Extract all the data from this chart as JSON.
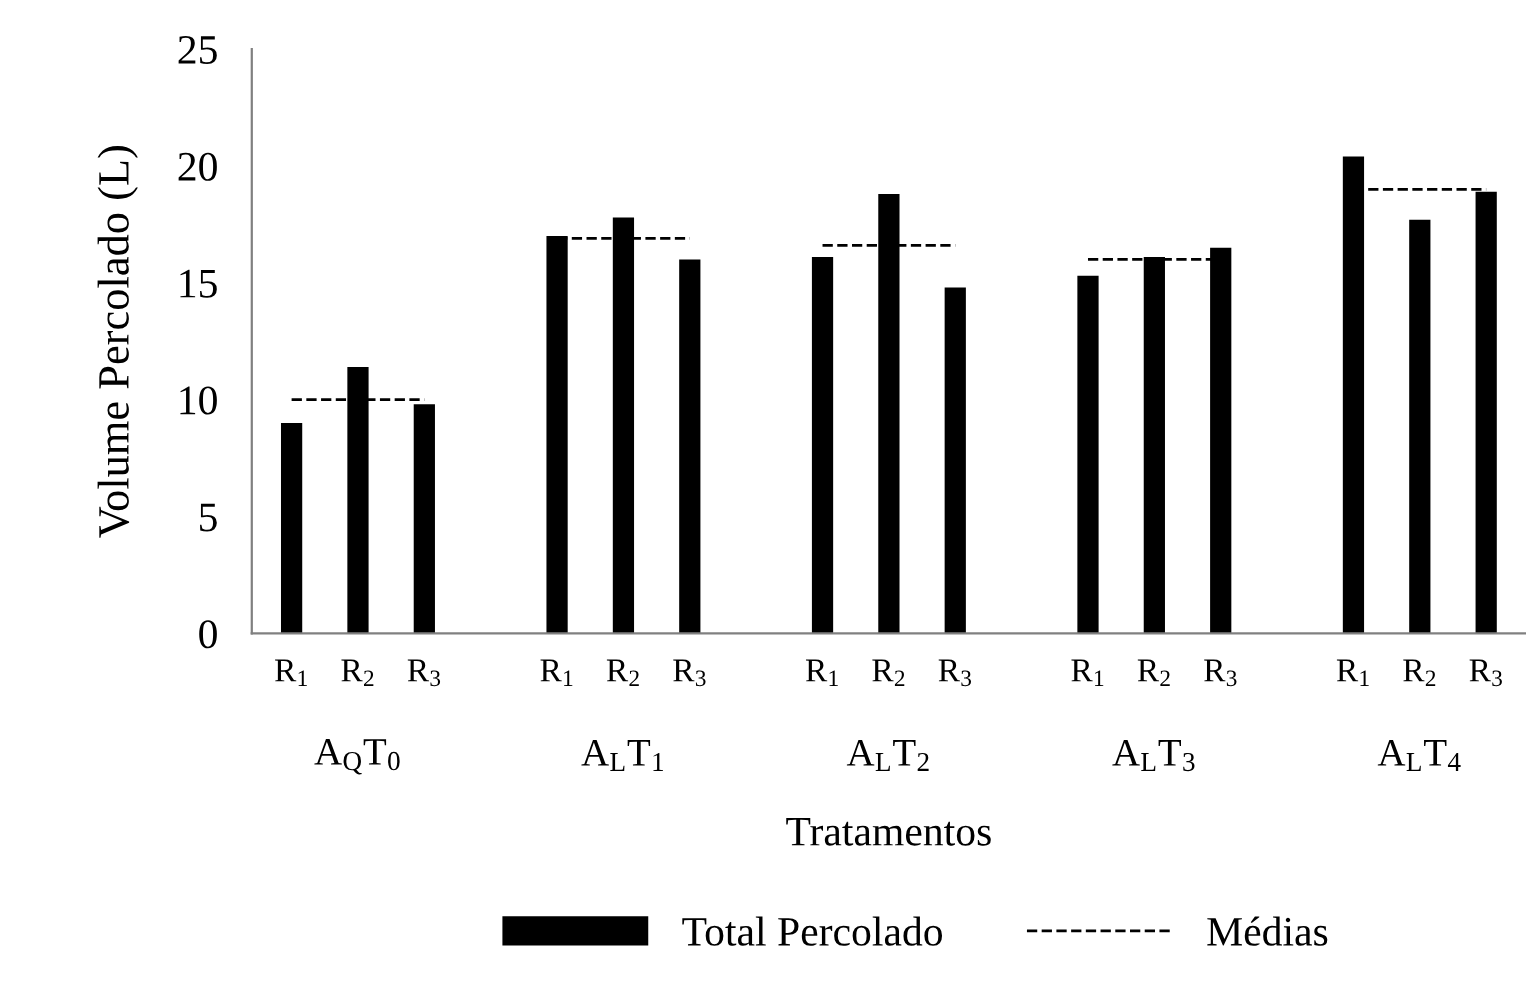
{
  "chart_data": {
    "type": "bar",
    "xlabel": "Tratamentos",
    "ylabel": "Volume Percolado (L)",
    "categories": [
      "R$_{1}$",
      "R$_{2}$",
      "R$_{3}$",
      null,
      "R$_{1}$",
      "R$_{2}$",
      "R$_{3}$",
      null,
      "R$_{1}$",
      "R$_{2}$",
      "R$_{3}$",
      null,
      "R$_{1}$",
      "R$_{2}$",
      "R$_{3}$",
      null,
      "R$_{1}$",
      "R$_{2}$",
      "R$_{3}$"
    ],
    "series": [
      {
        "name": "Total Percolado",
        "color": "#000000",
        "values": [
          9.0,
          11.4,
          9.8,
          null,
          17.0,
          17.8,
          16.0,
          null,
          16.1,
          18.8,
          14.8,
          null,
          15.3,
          16.1,
          16.5,
          null,
          20.4,
          17.7,
          18.9
        ]
      },
      {
        "name": "Médias",
        "type": "line",
        "color": "#000000",
        "line_style": "dashed",
        "marker": "none",
        "values": [
          10.0,
          10.0,
          10.0,
          null,
          16.9,
          16.9,
          16.9,
          null,
          16.6,
          16.6,
          16.6,
          null,
          16.0,
          16.0,
          16.0,
          null,
          19.0,
          19.0,
          19.0
        ]
      }
    ],
    "annotations": [
      "A$_{Q}$T$_{0}$",
      "A$_{L}$T$_{1}$",
      "A$_{L}$T$_{2}$",
      "A$_{L}$T$_{3}$",
      "A$_{L}$T$_{4}$"
    ],
    "ylim": [
      0,
      25
    ],
    "yticks": [
      0,
      5,
      10,
      15,
      20,
      25
    ],
    "grid": false,
    "legend": "bottom"
  }
}
